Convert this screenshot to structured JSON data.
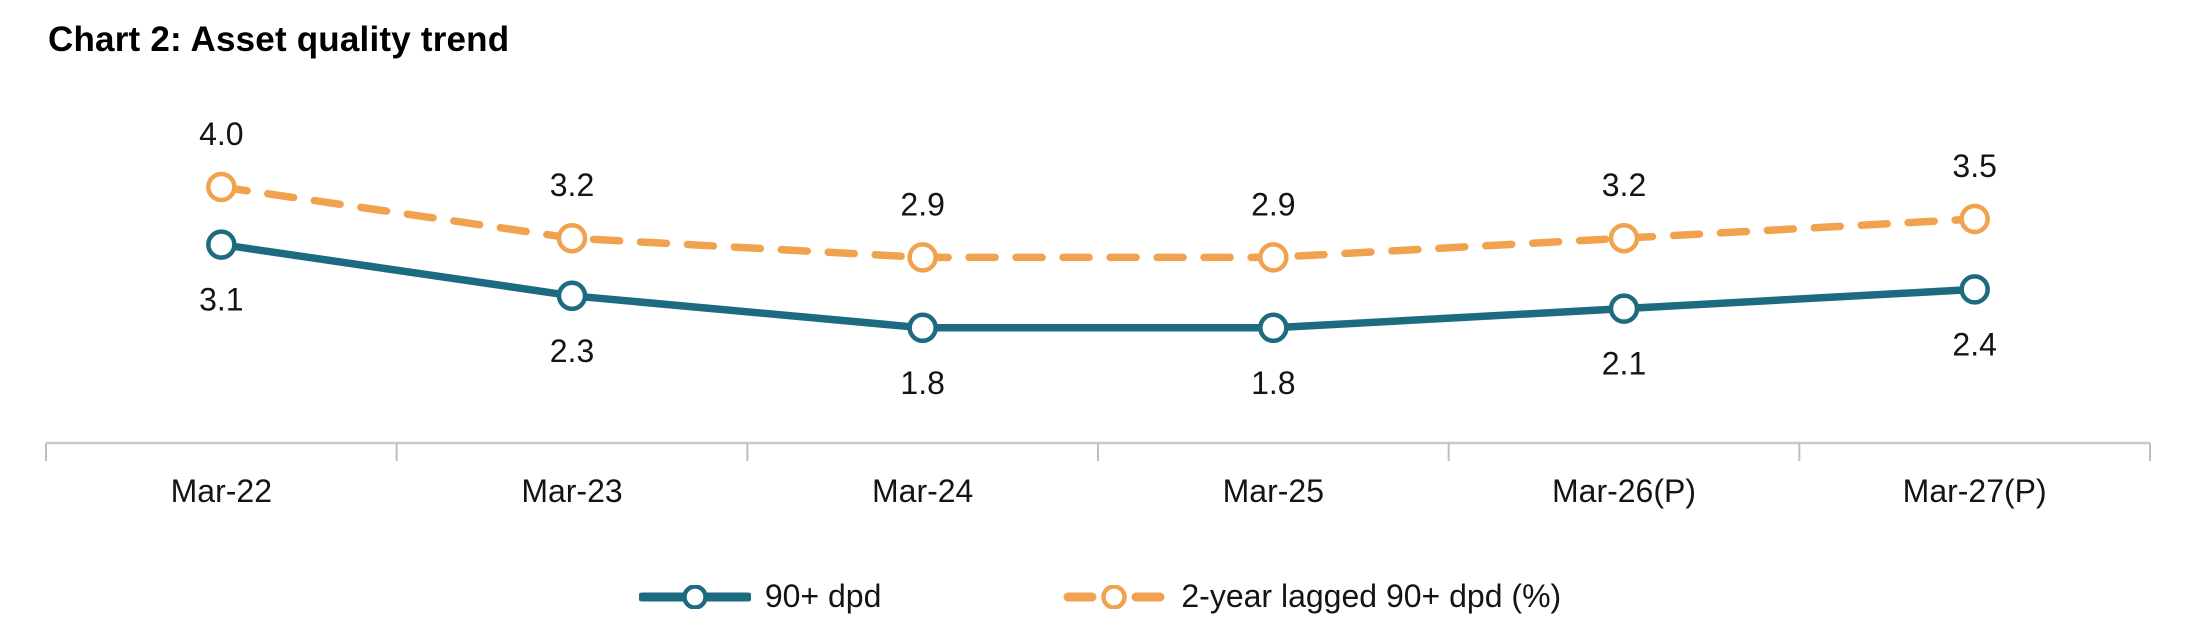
{
  "title": "Chart 2: Asset quality trend",
  "colors": {
    "series_90dpd": "#1C6B80",
    "series_lagged": "#F0A24E",
    "axis_line": "#C9C9C9",
    "axis_tick": "#BFBFBF",
    "label_text": "#141414",
    "marker_fill": "#FFFFFF"
  },
  "chart_data": {
    "type": "line",
    "title": "Chart 2: Asset quality trend",
    "categories": [
      "Mar-22",
      "Mar-23",
      "Mar-24",
      "Mar-25",
      "Mar-26(P)",
      "Mar-27(P)"
    ],
    "series": [
      {
        "name": "2-year lagged 90+ dpd (%)",
        "values": [
          4.0,
          3.2,
          2.9,
          2.9,
          3.2,
          3.5
        ],
        "color": "#F0A24E",
        "line_style": "dashed",
        "marker": "hollow-circle",
        "data_labels": "above"
      },
      {
        "name": "90+ dpd",
        "values": [
          3.1,
          2.3,
          1.8,
          1.8,
          2.1,
          2.4
        ],
        "color": "#1C6B80",
        "line_style": "solid",
        "marker": "hollow-circle",
        "data_labels": "below"
      }
    ],
    "ylim": [
      0,
      5.2
    ],
    "grid": false,
    "y_axis_visible": false,
    "data_label_decimals": 1,
    "legend_position": "bottom"
  },
  "legend": {
    "items": [
      {
        "label": "90+ dpd"
      },
      {
        "label": "2-year lagged 90+ dpd (%)"
      }
    ]
  }
}
